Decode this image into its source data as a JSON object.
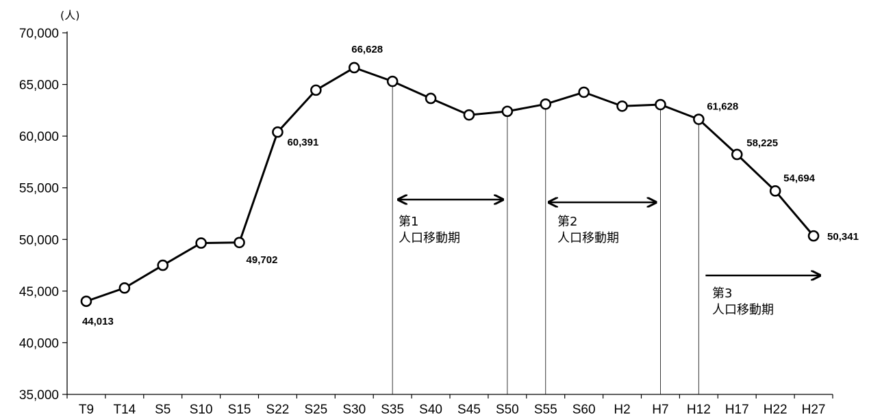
{
  "chart_data": {
    "type": "line",
    "unit_label": "(人)",
    "categories": [
      "T9",
      "T14",
      "S5",
      "S10",
      "S15",
      "S22",
      "S25",
      "S30",
      "S35",
      "S40",
      "S45",
      "S50",
      "S55",
      "S60",
      "H2",
      "H7",
      "H12",
      "H17",
      "H22",
      "H27"
    ],
    "series": [
      {
        "values": [
          44013,
          45300,
          47500,
          49650,
          49702,
          60391,
          64450,
          66628,
          65300,
          63650,
          62050,
          62400,
          63100,
          64250,
          62900,
          63050,
          61628,
          58225,
          54694,
          50341
        ]
      }
    ],
    "data_labels": [
      {
        "category": "T9",
        "text": "44,013"
      },
      {
        "category": "S15",
        "text": "49,702"
      },
      {
        "category": "S22",
        "text": "60,391"
      },
      {
        "category": "S30",
        "text": "66,628"
      },
      {
        "category": "H12",
        "text": "61,628"
      },
      {
        "category": "H17",
        "text": "58,225"
      },
      {
        "category": "H22",
        "text": "54,694"
      },
      {
        "category": "H27",
        "text": "50,341"
      }
    ],
    "ylim": [
      35000,
      70000
    ],
    "y_ticks": [
      35000,
      40000,
      45000,
      50000,
      55000,
      60000,
      65000,
      70000
    ],
    "y_tick_labels": [
      "35,000",
      "40,000",
      "45,000",
      "50,000",
      "55,000",
      "60,000",
      "65,000",
      "70,000"
    ],
    "grid": false,
    "period_dividers": [
      "S35",
      "S50",
      "S55",
      "H7",
      "H12"
    ],
    "annotations": [
      {
        "line1": "第1",
        "line2": "人口移動期",
        "from": "S35",
        "to": "S50"
      },
      {
        "line1": "第2",
        "line2": "人口移動期",
        "from": "S55",
        "to": "H7"
      },
      {
        "line1": "第3",
        "line2": "人口移動期",
        "from": "H12",
        "to": "H27"
      }
    ]
  }
}
